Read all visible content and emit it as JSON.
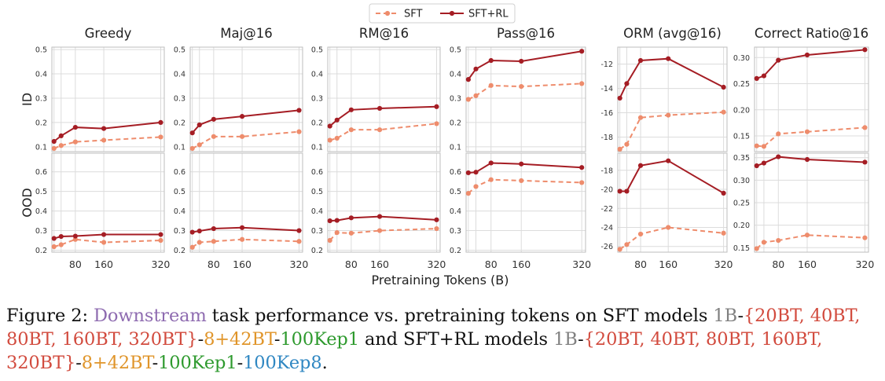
{
  "chart_data": {
    "type": "line",
    "legend": {
      "placement": "top-center",
      "entries": [
        "SFT",
        "SFT+RL"
      ]
    },
    "colors": {
      "SFT": "#ee8c6c",
      "SFT+RL": "#a51d24"
    },
    "x": [
      20,
      40,
      80,
      160,
      320
    ],
    "xticks": [
      "80",
      "160",
      "320"
    ],
    "xlabel": "Pretraining Tokens (B)",
    "row_labels": [
      "ID",
      "OOD"
    ],
    "panels": [
      {
        "title": "Greedy",
        "row": "ID",
        "ylim": [
          0.08,
          0.51
        ],
        "yticks": [
          "0.1",
          "0.2",
          "0.3",
          "0.4",
          "0.5"
        ],
        "ytick_values": [
          0.1,
          0.2,
          0.3,
          0.4,
          0.5
        ],
        "series": [
          {
            "name": "SFT",
            "values": [
              0.093,
              0.105,
              0.12,
              0.127,
              0.14
            ]
          },
          {
            "name": "SFT+RL",
            "values": [
              0.122,
              0.145,
              0.18,
              0.175,
              0.2
            ]
          }
        ]
      },
      {
        "title": "Maj@16",
        "row": "ID",
        "ylim": [
          0.08,
          0.51
        ],
        "yticks": [
          "0.1",
          "0.2",
          "0.3",
          "0.4",
          "0.5"
        ],
        "ytick_values": [
          0.1,
          0.2,
          0.3,
          0.4,
          0.5
        ],
        "series": [
          {
            "name": "SFT",
            "values": [
              0.093,
              0.108,
              0.142,
              0.142,
              0.162
            ]
          },
          {
            "name": "SFT+RL",
            "values": [
              0.157,
              0.19,
              0.213,
              0.225,
              0.25
            ]
          }
        ]
      },
      {
        "title": "RM@16",
        "row": "ID",
        "ylim": [
          0.08,
          0.51
        ],
        "yticks": [
          "0.1",
          "0.2",
          "0.3",
          "0.4",
          "0.5"
        ],
        "ytick_values": [
          0.1,
          0.2,
          0.3,
          0.4,
          0.5
        ],
        "series": [
          {
            "name": "SFT",
            "values": [
              0.127,
              0.135,
              0.17,
              0.17,
              0.195
            ]
          },
          {
            "name": "SFT+RL",
            "values": [
              0.185,
              0.21,
              0.252,
              0.258,
              0.265
            ]
          }
        ]
      },
      {
        "title": "Pass@16",
        "row": "ID",
        "ylim": [
          0.08,
          0.51
        ],
        "yticks": [
          "0.1",
          "0.2",
          "0.3",
          "0.4",
          "0.5"
        ],
        "ytick_values": [
          0.1,
          0.2,
          0.3,
          0.4,
          0.5
        ],
        "series": [
          {
            "name": "SFT",
            "values": [
              0.295,
              0.31,
              0.352,
              0.348,
              0.36
            ]
          },
          {
            "name": "SFT+RL",
            "values": [
              0.377,
              0.42,
              0.455,
              0.452,
              0.493
            ]
          }
        ]
      },
      {
        "title": "ORM (avg@16)",
        "row": "ID",
        "ylim": [
          -19.2,
          -10.6
        ],
        "yticks": [
          "-12",
          "-14",
          "-16",
          "-18"
        ],
        "ytick_values": [
          -12,
          -14,
          -16,
          -18
        ],
        "series": [
          {
            "name": "SFT",
            "values": [
              -19.0,
              -18.6,
              -16.4,
              -16.2,
              -15.95
            ]
          },
          {
            "name": "SFT+RL",
            "values": [
              -14.8,
              -13.6,
              -11.7,
              -11.55,
              -13.9
            ]
          }
        ]
      },
      {
        "title": "Correct Ratio@16",
        "row": "ID",
        "ylim": [
          0.12,
          0.32
        ],
        "yticks": [
          "0.15",
          "0.20",
          "0.25",
          "0.30"
        ],
        "ytick_values": [
          0.15,
          0.2,
          0.25,
          0.3
        ],
        "series": [
          {
            "name": "SFT",
            "values": [
              0.131,
              0.13,
              0.154,
              0.158,
              0.166
            ]
          },
          {
            "name": "SFT+RL",
            "values": [
              0.26,
              0.265,
              0.295,
              0.305,
              0.315
            ]
          }
        ]
      },
      {
        "row": "OOD",
        "ylim": [
          0.19,
          0.695
        ],
        "yticks": [
          "0.2",
          "0.3",
          "0.4",
          "0.5",
          "0.6"
        ],
        "ytick_values": [
          0.2,
          0.3,
          0.4,
          0.5,
          0.6
        ],
        "series": [
          {
            "name": "SFT",
            "values": [
              0.218,
              0.228,
              0.255,
              0.24,
              0.25
            ]
          },
          {
            "name": "SFT+RL",
            "values": [
              0.26,
              0.27,
              0.272,
              0.28,
              0.28
            ]
          }
        ]
      },
      {
        "row": "OOD",
        "ylim": [
          0.19,
          0.695
        ],
        "yticks": [
          "0.2",
          "0.3",
          "0.4",
          "0.5",
          "0.6"
        ],
        "ytick_values": [
          0.2,
          0.3,
          0.4,
          0.5,
          0.6
        ],
        "series": [
          {
            "name": "SFT",
            "values": [
              0.215,
              0.24,
              0.245,
              0.255,
              0.245
            ]
          },
          {
            "name": "SFT+RL",
            "values": [
              0.292,
              0.298,
              0.31,
              0.315,
              0.3
            ]
          }
        ]
      },
      {
        "row": "OOD",
        "ylim": [
          0.19,
          0.695
        ],
        "yticks": [
          "0.2",
          "0.3",
          "0.4",
          "0.5",
          "0.6"
        ],
        "ytick_values": [
          0.2,
          0.3,
          0.4,
          0.5,
          0.6
        ],
        "series": [
          {
            "name": "SFT",
            "values": [
              0.25,
              0.29,
              0.287,
              0.3,
              0.31
            ]
          },
          {
            "name": "SFT+RL",
            "values": [
              0.35,
              0.352,
              0.365,
              0.372,
              0.355
            ]
          }
        ]
      },
      {
        "row": "OOD",
        "ylim": [
          0.19,
          0.695
        ],
        "yticks": [
          "0.2",
          "0.3",
          "0.4",
          "0.5",
          "0.6"
        ],
        "ytick_values": [
          0.2,
          0.3,
          0.4,
          0.5,
          0.6
        ],
        "series": [
          {
            "name": "SFT",
            "values": [
              0.49,
              0.525,
              0.56,
              0.555,
              0.545
            ]
          },
          {
            "name": "SFT+RL",
            "values": [
              0.595,
              0.598,
              0.645,
              0.64,
              0.622
            ]
          }
        ]
      },
      {
        "row": "OOD",
        "ylim": [
          -26.6,
          -16.2
        ],
        "yticks": [
          "-18",
          "-20",
          "-22",
          "-24",
          "-26"
        ],
        "ytick_values": [
          -18,
          -20,
          -22,
          -24,
          -26
        ],
        "series": [
          {
            "name": "SFT",
            "values": [
              -26.3,
              -25.8,
              -24.7,
              -24.0,
              -24.6
            ]
          },
          {
            "name": "SFT+RL",
            "values": [
              -20.2,
              -20.2,
              -17.5,
              -17.0,
              -20.4
            ]
          }
        ]
      },
      {
        "row": "OOD",
        "ylim": [
          0.14,
          0.36
        ],
        "yticks": [
          "0.15",
          "0.20",
          "0.25",
          "0.30",
          "0.35"
        ],
        "ytick_values": [
          0.15,
          0.2,
          0.25,
          0.3,
          0.35
        ],
        "series": [
          {
            "name": "SFT",
            "values": [
              0.148,
              0.162,
              0.166,
              0.178,
              0.172
            ]
          },
          {
            "name": "SFT+RL",
            "values": [
              0.332,
              0.338,
              0.352,
              0.346,
              0.34
            ]
          }
        ]
      }
    ]
  },
  "caption": {
    "parts": [
      {
        "text": "Figure 2: ",
        "color": "#111111"
      },
      {
        "text": "Downstream",
        "color": "#8e6bb0"
      },
      {
        "text": " task performance vs. pretraining tokens on SFT models ",
        "color": "#111111"
      },
      {
        "text": "1B",
        "color": "#808080"
      },
      {
        "text": "-",
        "color": "#111111"
      },
      {
        "text": "{20BT, 40BT, 80BT, 160BT, 320BT}",
        "color": "#d24b3e"
      },
      {
        "text": "-",
        "color": "#111111"
      },
      {
        "text": "8+42BT",
        "color": "#e0952a"
      },
      {
        "text": "-",
        "color": "#111111"
      },
      {
        "text": "100Kep1",
        "color": "#2e9a2e"
      },
      {
        "text": " and SFT+RL models ",
        "color": "#111111"
      },
      {
        "text": "1B",
        "color": "#808080"
      },
      {
        "text": "-",
        "color": "#111111"
      },
      {
        "text": "{20BT, 40BT, 80BT, 160BT, 320BT}",
        "color": "#d24b3e"
      },
      {
        "text": "-",
        "color": "#111111"
      },
      {
        "text": "8+42BT",
        "color": "#e0952a"
      },
      {
        "text": "-",
        "color": "#111111"
      },
      {
        "text": "100Kep1",
        "color": "#2e9a2e"
      },
      {
        "text": "-",
        "color": "#111111"
      },
      {
        "text": "100Kep8",
        "color": "#2f87c2"
      },
      {
        "text": ".",
        "color": "#111111"
      }
    ]
  }
}
